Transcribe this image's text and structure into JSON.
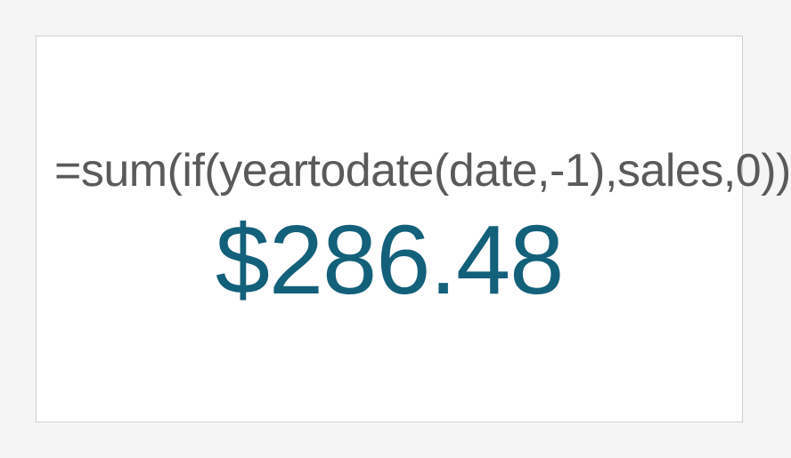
{
  "kpi": {
    "formula": "=sum(if(yeartodate(date,-1),sales,0))",
    "value": "$286.48",
    "formula_color": "#5a5a5a",
    "formula_fontsize": 52,
    "value_color": "#13607a",
    "value_fontsize": 110,
    "card_background": "#ffffff",
    "card_border": "#d0d0d0",
    "page_background": "#f5f5f5"
  }
}
